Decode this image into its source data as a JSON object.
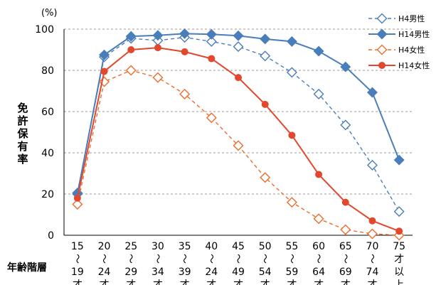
{
  "chart_data": {
    "type": "line",
    "unit": "(%)",
    "ylabel": "免許保有率",
    "xlabel": "年齢階層",
    "ylim": [
      0,
      100
    ],
    "yticks": [
      0,
      20,
      40,
      60,
      80,
      100
    ],
    "grid": true,
    "legend_position": "top-right",
    "categories": [
      [
        "15",
        "〜",
        "19",
        "才"
      ],
      [
        "20",
        "〜",
        "24",
        "才"
      ],
      [
        "25",
        "〜",
        "29",
        "才"
      ],
      [
        "30",
        "〜",
        "34",
        "才"
      ],
      [
        "35",
        "〜",
        "39",
        "才"
      ],
      [
        "40",
        "〜",
        "24",
        "才"
      ],
      [
        "45",
        "〜",
        "49",
        "才"
      ],
      [
        "50",
        "〜",
        "54",
        "才"
      ],
      [
        "55",
        "〜",
        "59",
        "才"
      ],
      [
        "60",
        "〜",
        "64",
        "才"
      ],
      [
        "65",
        "〜",
        "69",
        "才"
      ],
      [
        "70",
        "〜",
        "74",
        "才"
      ],
      [
        "75",
        "才",
        "以",
        "上"
      ]
    ],
    "series": [
      {
        "name": "H4男性",
        "color": "#4a7ebb",
        "dash": true,
        "marker": "diamond-open",
        "values": [
          20.5,
          86.5,
          95.5,
          94.5,
          96.0,
          94.0,
          91.5,
          87.0,
          79.0,
          68.5,
          53.5,
          34.0,
          11.5
        ]
      },
      {
        "name": "H14男性",
        "color": "#4a7ebb",
        "dash": false,
        "marker": "diamond-filled",
        "values": [
          20.0,
          87.5,
          96.5,
          97.0,
          97.8,
          97.5,
          96.8,
          95.2,
          94.0,
          89.3,
          81.7,
          69.3,
          36.5
        ]
      },
      {
        "name": "H4女性",
        "color": "#ee6c2b",
        "dash": true,
        "marker": "diamond-open",
        "values": [
          15.0,
          74.5,
          80.0,
          76.5,
          68.5,
          57.0,
          43.5,
          28.0,
          16.0,
          8.0,
          2.7,
          0.7,
          0.0
        ]
      },
      {
        "name": "H14女性",
        "color": "#e2482d",
        "dash": false,
        "marker": "circle-filled",
        "values": [
          18.0,
          79.5,
          90.0,
          91.0,
          89.0,
          85.7,
          76.5,
          63.5,
          48.5,
          29.5,
          16.0,
          7.0,
          2.0
        ]
      }
    ]
  }
}
